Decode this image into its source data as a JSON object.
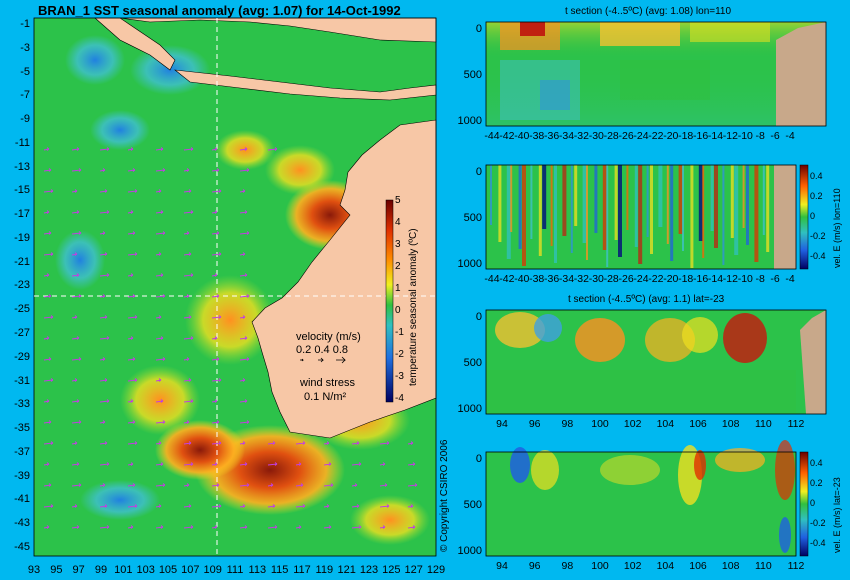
{
  "map": {
    "title": "BRAN_1  SST seasonal anomaly  (avg: 1.07) for 14-Oct-1992",
    "lat_ticks": [
      "-1",
      "-3",
      "-5",
      "-7",
      "-9",
      "-11",
      "-13",
      "-15",
      "-17",
      "-19",
      "-21",
      "-23",
      "-25",
      "-27",
      "-29",
      "-31",
      "-33",
      "-35",
      "-37",
      "-39",
      "-41",
      "-43",
      "-45"
    ],
    "lon_ticks": [
      "93",
      "95",
      "97",
      "99",
      "101",
      "103",
      "105",
      "107",
      "109",
      "111",
      "113",
      "115",
      "117",
      "119",
      "121",
      "123",
      "125",
      "127",
      "129"
    ],
    "colorbar_label": "temperature seasonal anomaly (ºC)",
    "colorbar_ticks": [
      "5",
      "4",
      "3",
      "2",
      "1",
      "0",
      "-1",
      "-2",
      "-3",
      "-4"
    ],
    "velocity_label": "velocity (m/s)",
    "velocity_scale": "0.2 0.4 0.8",
    "wind_label": "wind stress",
    "wind_value": "0.1 N/m²",
    "copyright": "© Copyright CSIRO 2006",
    "crosshair_lat": -23,
    "crosshair_lon": 110
  },
  "panels": [
    {
      "title": "t section (-4..5ºC) (avg: 1.08) lon=110",
      "y_ticks": [
        "0",
        "500",
        "1000"
      ],
      "x_ticks": [
        "-44",
        "-42",
        "-40",
        "-38",
        "-36",
        "-34",
        "-32",
        "-30",
        "-28",
        "-26",
        "-24",
        "-22",
        "-20",
        "-18",
        "-16",
        "-14",
        "-12",
        "-10",
        "-8",
        "-6",
        "-4"
      ]
    },
    {
      "title": "",
      "y_ticks": [
        "0",
        "500",
        "1000"
      ],
      "x_ticks": [
        "-44",
        "-42",
        "-40",
        "-38",
        "-36",
        "-34",
        "-32",
        "-30",
        "-28",
        "-26",
        "-24",
        "-22",
        "-20",
        "-18",
        "-16",
        "-14",
        "-12",
        "-10",
        "-8",
        "-6",
        "-4"
      ],
      "colorbar_label": "vel. E (m/s) lon=110",
      "colorbar_ticks": [
        "0.4",
        "0.2",
        "0",
        "-0.2",
        "-0.4"
      ]
    },
    {
      "title": "t section (-4..5ºC) (avg: 1.1) lat=-23",
      "y_ticks": [
        "0",
        "500",
        "1000"
      ],
      "x_ticks": [
        "94",
        "96",
        "98",
        "100",
        "102",
        "104",
        "106",
        "108",
        "110",
        "112"
      ]
    },
    {
      "title": "",
      "y_ticks": [
        "0",
        "500",
        "1000"
      ],
      "x_ticks": [
        "94",
        "96",
        "98",
        "100",
        "102",
        "104",
        "106",
        "108",
        "110",
        "112"
      ],
      "colorbar_label": "vel. E (m/s) lat=-23",
      "colorbar_ticks": [
        "0.4",
        "0.2",
        "0",
        "-0.2",
        "-0.4"
      ]
    }
  ],
  "colors": {
    "background": "#00b8f0",
    "land": "#f7c7a6",
    "seabed": "#c8a88a",
    "anomaly_neutral": "#2cc24a",
    "anomaly_warm": "#ff8c1a",
    "anomaly_hot": "#8a1a0a",
    "anomaly_cool": "#3aa0e0",
    "vector": "#c040e0"
  }
}
